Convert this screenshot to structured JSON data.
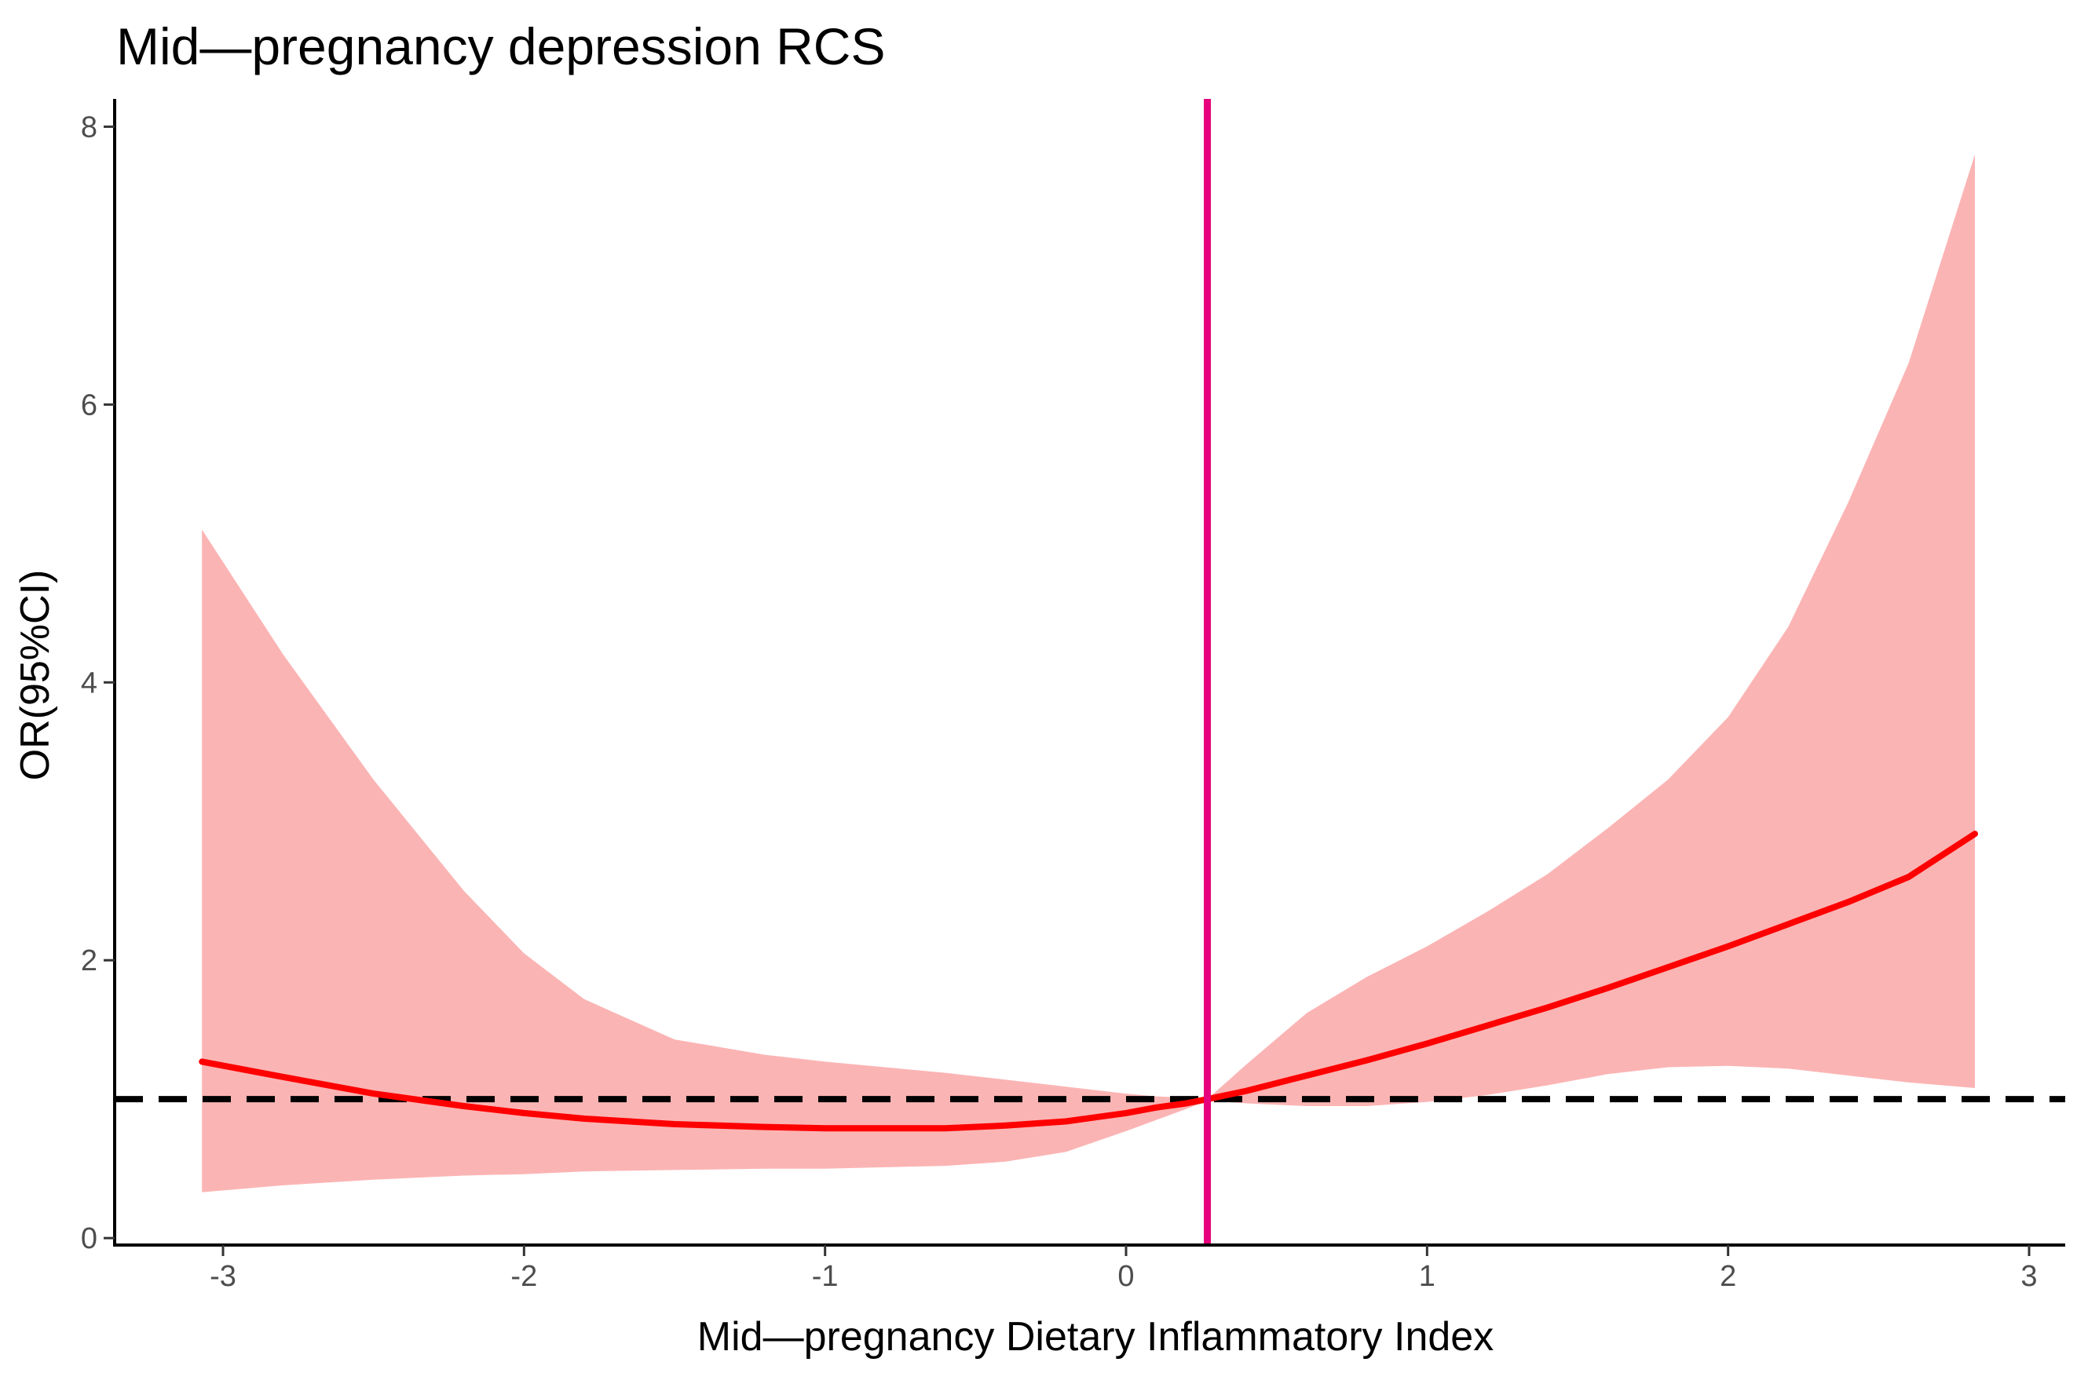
{
  "chart_data": {
    "type": "line",
    "title": "Mid—pregnancy depression RCS",
    "xlabel": "Mid—pregnancy Dietary Inflammatory Index",
    "ylabel": "OR(95%CI)",
    "xlim": [
      -3.36,
      3.12
    ],
    "ylim": [
      -0.05,
      8.2
    ],
    "x_ticks": [
      -3,
      -2,
      -1,
      0,
      1,
      2,
      3
    ],
    "y_ticks": [
      0,
      2,
      4,
      6,
      8
    ],
    "x_tick_labels": [
      "-3",
      "-2",
      "-1",
      "0",
      "1",
      "2",
      "3"
    ],
    "y_tick_labels": [
      "0",
      "2",
      "4",
      "6",
      "8"
    ],
    "grid": false,
    "reference_line": {
      "y": 1.0,
      "style": "dashed",
      "color": "#000000"
    },
    "vertical_line": {
      "x": 0.27,
      "color": "#e6007e"
    },
    "colors": {
      "line": "#ff0000",
      "ci_band": "#fbb4b4"
    },
    "series": [
      {
        "name": "OR",
        "x": [
          -3.07,
          -2.8,
          -2.5,
          -2.2,
          -2.0,
          -1.8,
          -1.5,
          -1.2,
          -1.0,
          -0.8,
          -0.6,
          -0.4,
          -0.2,
          0.0,
          0.1,
          0.2,
          0.27,
          0.4,
          0.6,
          0.8,
          1.0,
          1.2,
          1.4,
          1.6,
          1.8,
          2.0,
          2.2,
          2.4,
          2.6,
          2.82
        ],
        "y": [
          1.27,
          1.16,
          1.04,
          0.95,
          0.9,
          0.86,
          0.82,
          0.8,
          0.79,
          0.79,
          0.79,
          0.81,
          0.84,
          0.9,
          0.94,
          0.97,
          1.0,
          1.06,
          1.17,
          1.28,
          1.4,
          1.53,
          1.66,
          1.8,
          1.95,
          2.1,
          2.26,
          2.42,
          2.6,
          2.91
        ],
        "lower": [
          0.33,
          0.38,
          0.42,
          0.45,
          0.46,
          0.48,
          0.49,
          0.5,
          0.5,
          0.51,
          0.52,
          0.55,
          0.62,
          0.77,
          0.85,
          0.93,
          0.99,
          0.97,
          0.95,
          0.95,
          0.98,
          1.03,
          1.1,
          1.18,
          1.23,
          1.24,
          1.22,
          1.17,
          1.12,
          1.08
        ],
        "upper": [
          5.1,
          4.2,
          3.3,
          2.5,
          2.05,
          1.72,
          1.43,
          1.32,
          1.27,
          1.23,
          1.19,
          1.14,
          1.09,
          1.04,
          1.02,
          1.01,
          1.0,
          1.25,
          1.62,
          1.88,
          2.1,
          2.35,
          2.62,
          2.95,
          3.3,
          3.75,
          4.4,
          5.3,
          6.3,
          7.8
        ]
      }
    ]
  }
}
